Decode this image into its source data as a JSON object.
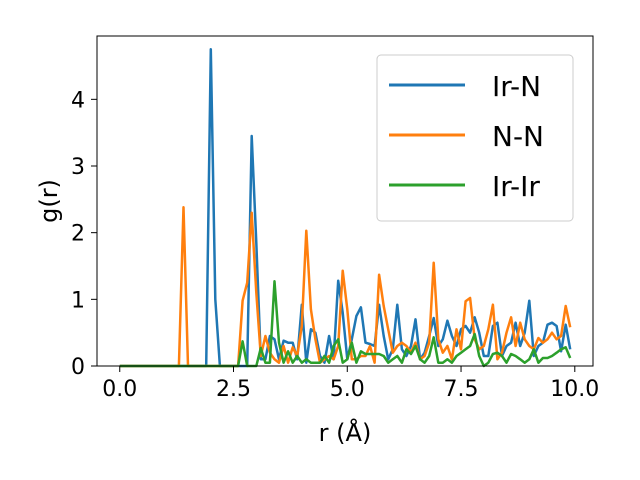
{
  "chart_data": {
    "type": "line",
    "title": "",
    "xlabel": "r (Å)",
    "ylabel": "g(r)",
    "xlim": [
      -0.5,
      10.4
    ],
    "ylim": [
      0,
      4.95
    ],
    "xticks": [
      0.0,
      2.5,
      5.0,
      7.5,
      10.0
    ],
    "xtick_labels": [
      "0.0",
      "2.5",
      "5.0",
      "7.5",
      "10.0"
    ],
    "yticks": [
      0,
      1,
      2,
      3,
      4
    ],
    "ytick_labels": [
      "0",
      "1",
      "2",
      "3",
      "4"
    ],
    "grid": false,
    "legend_position": "top-right",
    "series": [
      {
        "name": "Ir-N",
        "color": "#1f77b4",
        "points": [
          [
            0,
            0
          ],
          [
            1.9,
            0
          ],
          [
            2.0,
            4.75
          ],
          [
            2.1,
            1.0
          ],
          [
            2.2,
            0
          ],
          [
            2.8,
            0
          ],
          [
            2.9,
            3.45
          ],
          [
            3.0,
            1.85
          ],
          [
            3.1,
            0.1
          ],
          [
            3.2,
            0.1
          ],
          [
            3.3,
            0.45
          ],
          [
            3.4,
            0.4
          ],
          [
            3.5,
            0.1
          ],
          [
            3.6,
            0.38
          ],
          [
            3.7,
            0.35
          ],
          [
            3.8,
            0.35
          ],
          [
            3.9,
            0.1
          ],
          [
            4.0,
            0.92
          ],
          [
            4.1,
            0.05
          ],
          [
            4.2,
            0.55
          ],
          [
            4.3,
            0.5
          ],
          [
            4.4,
            0.15
          ],
          [
            4.5,
            0.05
          ],
          [
            4.6,
            0.45
          ],
          [
            4.7,
            0.1
          ],
          [
            4.8,
            1.28
          ],
          [
            4.9,
            0.8
          ],
          [
            5.0,
            0.1
          ],
          [
            5.1,
            0.4
          ],
          [
            5.2,
            0.75
          ],
          [
            5.3,
            0.88
          ],
          [
            5.4,
            0.35
          ],
          [
            5.5,
            0.33
          ],
          [
            5.6,
            0.3
          ],
          [
            5.7,
            0.92
          ],
          [
            5.8,
            0.45
          ],
          [
            5.9,
            0.1
          ],
          [
            6.0,
            0.25
          ],
          [
            6.1,
            0.92
          ],
          [
            6.2,
            0.25
          ],
          [
            6.3,
            0.15
          ],
          [
            6.4,
            0.3
          ],
          [
            6.5,
            0.7
          ],
          [
            6.6,
            0.1
          ],
          [
            6.7,
            0.2
          ],
          [
            6.8,
            0.45
          ],
          [
            6.9,
            0.72
          ],
          [
            7.0,
            0.3
          ],
          [
            7.1,
            0.4
          ],
          [
            7.2,
            0.68
          ],
          [
            7.3,
            0.45
          ],
          [
            7.4,
            0.3
          ],
          [
            7.5,
            0.55
          ],
          [
            7.6,
            0.6
          ],
          [
            7.7,
            0.5
          ],
          [
            7.8,
            0.73
          ],
          [
            7.9,
            0.5
          ],
          [
            8.0,
            0.15
          ],
          [
            8.1,
            0.15
          ],
          [
            8.2,
            0.6
          ],
          [
            8.3,
            0.65
          ],
          [
            8.4,
            0.15
          ],
          [
            8.5,
            0.3
          ],
          [
            8.6,
            0.35
          ],
          [
            8.7,
            0.65
          ],
          [
            8.8,
            0.3
          ],
          [
            8.9,
            0.5
          ],
          [
            9.0,
            0.98
          ],
          [
            9.1,
            0.15
          ],
          [
            9.2,
            0.3
          ],
          [
            9.3,
            0.35
          ],
          [
            9.4,
            0.62
          ],
          [
            9.5,
            0.65
          ],
          [
            9.6,
            0.6
          ],
          [
            9.7,
            0.22
          ],
          [
            9.8,
            0.62
          ],
          [
            9.9,
            0.25
          ]
        ]
      },
      {
        "name": "N-N",
        "color": "#ff7f0e",
        "points": [
          [
            0,
            0
          ],
          [
            1.3,
            0
          ],
          [
            1.4,
            2.38
          ],
          [
            1.5,
            0
          ],
          [
            2.6,
            0
          ],
          [
            2.7,
            0.98
          ],
          [
            2.8,
            1.25
          ],
          [
            2.9,
            2.3
          ],
          [
            3.0,
            1.1
          ],
          [
            3.1,
            0.15
          ],
          [
            3.2,
            0.45
          ],
          [
            3.3,
            0.2
          ],
          [
            3.4,
            0.1
          ],
          [
            3.5,
            0.05
          ],
          [
            3.6,
            0.3
          ],
          [
            3.7,
            0.05
          ],
          [
            3.8,
            0.28
          ],
          [
            3.9,
            0.15
          ],
          [
            4.0,
            0.6
          ],
          [
            4.1,
            2.03
          ],
          [
            4.2,
            0.85
          ],
          [
            4.3,
            0.4
          ],
          [
            4.4,
            0.05
          ],
          [
            4.5,
            0.1
          ],
          [
            4.6,
            0.15
          ],
          [
            4.7,
            0.1
          ],
          [
            4.8,
            0.3
          ],
          [
            4.9,
            1.43
          ],
          [
            5.0,
            0.85
          ],
          [
            5.1,
            0.1
          ],
          [
            5.2,
            0.1
          ],
          [
            5.3,
            0.15
          ],
          [
            5.4,
            0.15
          ],
          [
            5.5,
            0.3
          ],
          [
            5.6,
            0.05
          ],
          [
            5.7,
            1.37
          ],
          [
            5.8,
            0.9
          ],
          [
            5.9,
            0.55
          ],
          [
            6.0,
            0.2
          ],
          [
            6.1,
            0.3
          ],
          [
            6.2,
            0.35
          ],
          [
            6.3,
            0.3
          ],
          [
            6.4,
            0.2
          ],
          [
            6.5,
            0.35
          ],
          [
            6.6,
            0.1
          ],
          [
            6.7,
            0.15
          ],
          [
            6.8,
            0.35
          ],
          [
            6.9,
            1.55
          ],
          [
            7.0,
            0.4
          ],
          [
            7.1,
            0.2
          ],
          [
            7.2,
            0.3
          ],
          [
            7.3,
            0.1
          ],
          [
            7.4,
            0.55
          ],
          [
            7.5,
            0.25
          ],
          [
            7.6,
            0.97
          ],
          [
            7.7,
            1.02
          ],
          [
            7.8,
            0.4
          ],
          [
            7.9,
            0.25
          ],
          [
            8.0,
            0.3
          ],
          [
            8.1,
            0.55
          ],
          [
            8.2,
            0.92
          ],
          [
            8.3,
            0.1
          ],
          [
            8.4,
            0.2
          ],
          [
            8.5,
            0.5
          ],
          [
            8.6,
            0.73
          ],
          [
            8.7,
            0.3
          ],
          [
            8.8,
            0.65
          ],
          [
            8.9,
            0.4
          ],
          [
            9.0,
            0.3
          ],
          [
            9.1,
            0.25
          ],
          [
            9.2,
            0.42
          ],
          [
            9.3,
            0.35
          ],
          [
            9.4,
            0.4
          ],
          [
            9.5,
            0.5
          ],
          [
            9.6,
            0.4
          ],
          [
            9.7,
            0.45
          ],
          [
            9.8,
            0.9
          ],
          [
            9.9,
            0.58
          ]
        ]
      },
      {
        "name": "Ir-Ir",
        "color": "#2ca02c",
        "points": [
          [
            0,
            0
          ],
          [
            2.6,
            0
          ],
          [
            2.7,
            0.37
          ],
          [
            2.8,
            0
          ],
          [
            3.0,
            0
          ],
          [
            3.1,
            0.27
          ],
          [
            3.2,
            0.05
          ],
          [
            3.3,
            0.05
          ],
          [
            3.4,
            1.27
          ],
          [
            3.5,
            0.35
          ],
          [
            3.6,
            0.05
          ],
          [
            3.7,
            0.22
          ],
          [
            3.8,
            0.05
          ],
          [
            3.9,
            0.15
          ],
          [
            4.0,
            0.05
          ],
          [
            4.1,
            0.1
          ],
          [
            4.2,
            0.05
          ],
          [
            4.3,
            0.05
          ],
          [
            4.4,
            0.05
          ],
          [
            4.5,
            0.15
          ],
          [
            4.6,
            0.05
          ],
          [
            4.7,
            0.3
          ],
          [
            4.8,
            0.4
          ],
          [
            4.9,
            0.05
          ],
          [
            5.0,
            0.1
          ],
          [
            5.1,
            0.35
          ],
          [
            5.2,
            0.05
          ],
          [
            5.3,
            0.22
          ],
          [
            5.4,
            0.18
          ],
          [
            5.5,
            0.18
          ],
          [
            5.6,
            0.18
          ],
          [
            5.7,
            0.18
          ],
          [
            5.8,
            0.15
          ],
          [
            5.9,
            0.05
          ],
          [
            6.0,
            0.1
          ],
          [
            6.1,
            0.15
          ],
          [
            6.2,
            0.05
          ],
          [
            6.3,
            0.25
          ],
          [
            6.4,
            0.18
          ],
          [
            6.5,
            0.3
          ],
          [
            6.6,
            0.1
          ],
          [
            6.7,
            0.05
          ],
          [
            6.8,
            0.15
          ],
          [
            6.9,
            0.43
          ],
          [
            7.0,
            0.05
          ],
          [
            7.1,
            0.05
          ],
          [
            7.2,
            0.1
          ],
          [
            7.3,
            0.05
          ],
          [
            7.4,
            0.15
          ],
          [
            7.5,
            0.2
          ],
          [
            7.6,
            0.25
          ],
          [
            7.7,
            0.3
          ],
          [
            7.8,
            0.48
          ],
          [
            7.9,
            0.15
          ],
          [
            8.0,
            0.0
          ],
          [
            8.1,
            0.05
          ],
          [
            8.2,
            0.18
          ],
          [
            8.3,
            0.2
          ],
          [
            8.4,
            0.15
          ],
          [
            8.5,
            0.05
          ],
          [
            8.6,
            0.18
          ],
          [
            8.7,
            0.15
          ],
          [
            8.8,
            0.1
          ],
          [
            8.9,
            0.05
          ],
          [
            9.0,
            0.1
          ],
          [
            9.1,
            0.25
          ],
          [
            9.2,
            0.05
          ],
          [
            9.3,
            0.12
          ],
          [
            9.4,
            0.12
          ],
          [
            9.5,
            0.15
          ],
          [
            9.6,
            0.2
          ],
          [
            9.7,
            0.25
          ],
          [
            9.8,
            0.28
          ],
          [
            9.9,
            0.12
          ]
        ]
      }
    ]
  }
}
